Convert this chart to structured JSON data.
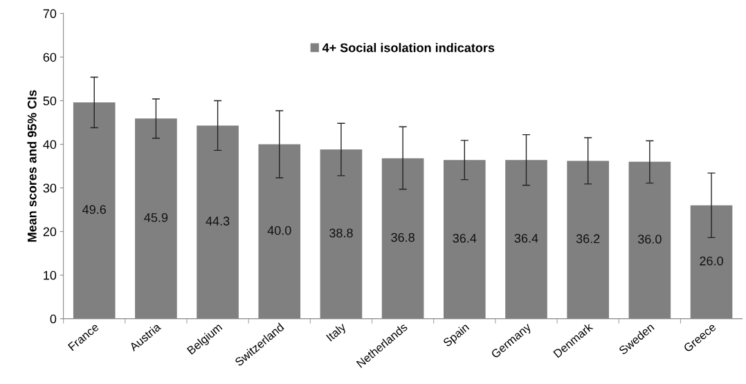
{
  "chart_data": {
    "type": "bar",
    "ylabel": "Mean scores and 95% CIs",
    "categories": [
      "France",
      "Austria",
      "Belgium",
      "Switzerland",
      "Italy",
      "Netherlands",
      "Spain",
      "Germany",
      "Denmark",
      "Sweden",
      "Greece"
    ],
    "series": [
      {
        "name": "4+ Social isolation indicators",
        "color": "#808080",
        "values": [
          49.6,
          45.9,
          44.3,
          40.0,
          38.8,
          36.8,
          36.4,
          36.4,
          36.2,
          36.0,
          26.0
        ],
        "value_labels": [
          "49.6",
          "45.9",
          "44.3",
          "40.0",
          "38.8",
          "36.8",
          "36.4",
          "36.4",
          "36.2",
          "36.0",
          "26.0"
        ],
        "errors": [
          [
            43.8,
            55.4
          ],
          [
            41.4,
            50.4
          ],
          [
            38.6,
            50.0
          ],
          [
            32.3,
            47.7
          ],
          [
            32.8,
            44.8
          ],
          [
            29.7,
            44.0
          ],
          [
            31.9,
            40.9
          ],
          [
            30.6,
            42.2
          ],
          [
            30.9,
            41.5
          ],
          [
            31.1,
            40.8
          ],
          [
            18.6,
            33.4
          ]
        ]
      }
    ],
    "ylim": [
      0,
      70
    ],
    "yticks": [
      0,
      10,
      20,
      30,
      40,
      50,
      60,
      70
    ],
    "legend": "top",
    "grid": false
  }
}
